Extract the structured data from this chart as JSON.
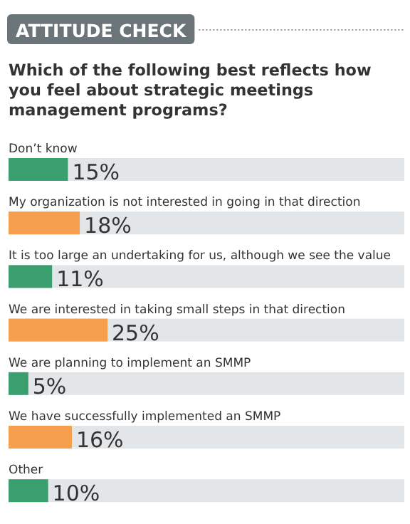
{
  "chart_data": {
    "type": "bar",
    "orientation": "horizontal",
    "title": "ATTITUDE CHECK",
    "subtitle": "Which of the following best reflects how you feel about strategic meetings management programs?",
    "categories": [
      "Don’t know",
      "My organization is not interested in going in that direction",
      "It is too large an undertaking for us, although we see the value",
      "We are interested in taking small steps in that direction",
      "We are planning to implement an SMMP",
      "We have successfully implemented an SMMP",
      "Other"
    ],
    "values": [
      15,
      18,
      11,
      25,
      5,
      16,
      10
    ],
    "colors": [
      "#3a9e6e",
      "#f6a04d",
      "#3a9e6e",
      "#f6a04d",
      "#3a9e6e",
      "#f6a04d",
      "#3a9e6e"
    ],
    "value_labels": [
      "15%",
      "18%",
      "11%",
      "25%",
      "5%",
      "16%",
      "10%"
    ],
    "xlim": [
      0,
      100
    ]
  }
}
